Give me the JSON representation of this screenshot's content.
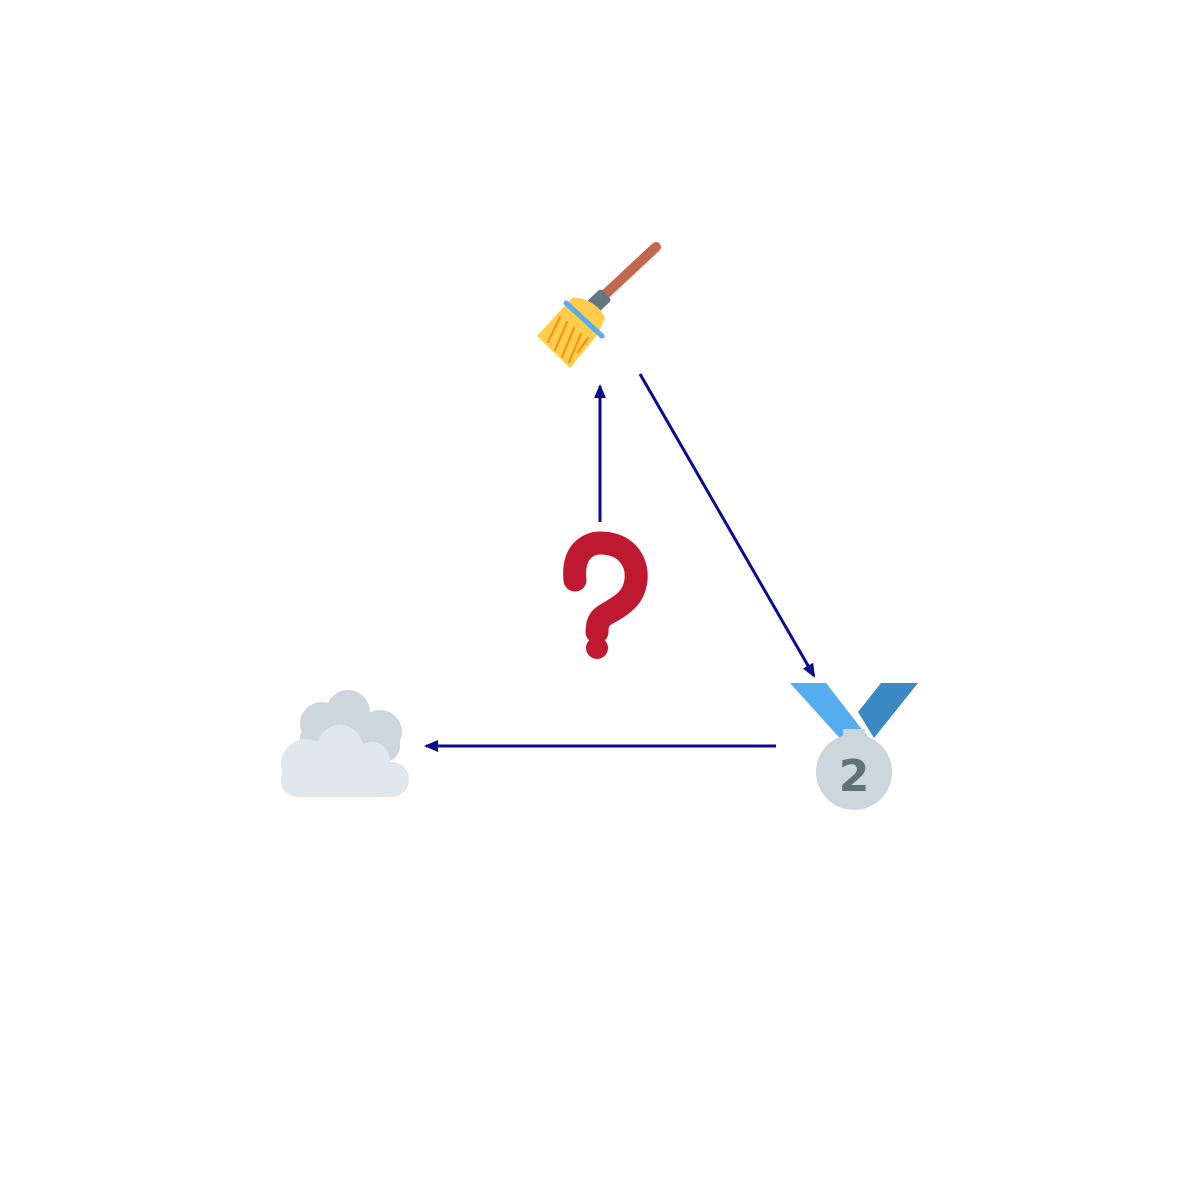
{
  "diagram": {
    "nodes": [
      {
        "id": "broom",
        "icon": "broom-icon"
      },
      {
        "id": "medal",
        "icon": "second-place-medal-icon",
        "label": "2"
      },
      {
        "id": "cloud",
        "icon": "cloud-icon"
      },
      {
        "id": "question",
        "icon": "question-mark-icon"
      }
    ],
    "edges": [
      {
        "from": "question",
        "to": "broom"
      },
      {
        "from": "broom",
        "to": "medal"
      },
      {
        "from": "medal",
        "to": "cloud"
      }
    ]
  },
  "colors": {
    "arrow": "#0b0b8c",
    "broom_handle": "#c1694f",
    "broom_ferrule": "#66757f",
    "broom_bristles": "#ffcc4d",
    "broom_bristle_lines": "#f4900c",
    "broom_band": "#55acee",
    "medal_ribbon_light": "#55acee",
    "medal_ribbon_dark": "#3b88c3",
    "medal_disc": "#ccd6dd",
    "medal_number": "#627077",
    "cloud_back": "#ccd6dd",
    "cloud_front": "#e1e8ed",
    "question": "#be1931"
  }
}
